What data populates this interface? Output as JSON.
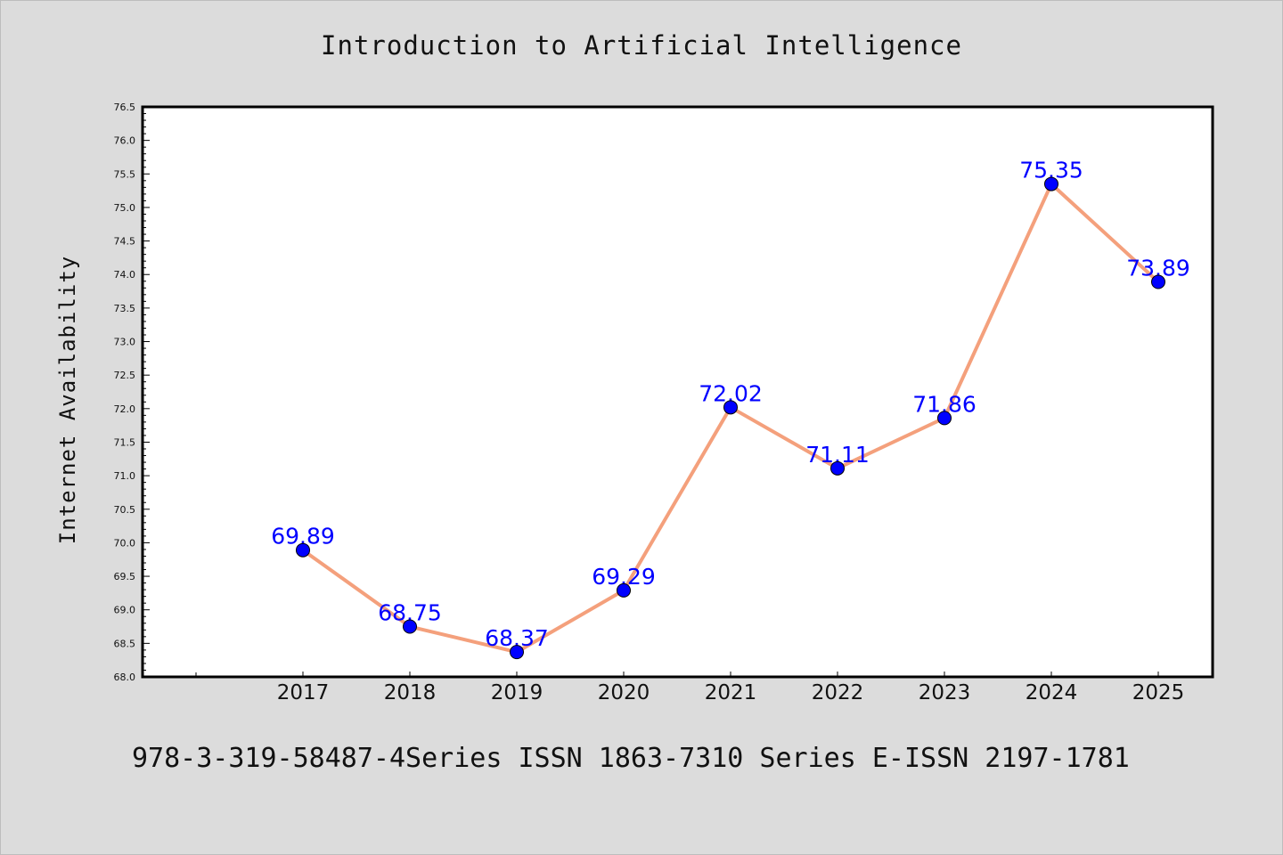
{
  "chart_data": {
    "type": "line",
    "title": "Introduction to Artificial Intelligence",
    "xlabel": "",
    "ylabel": "Internet Availability",
    "footer": "978-3-319-58487-4Series ISSN 1863-7310 Series E-ISSN 2197-1781",
    "categories": [
      "2017",
      "2018",
      "2019",
      "2020",
      "2021",
      "2022",
      "2023",
      "2024",
      "2025"
    ],
    "series": [
      {
        "values": [
          69.89,
          68.75,
          68.37,
          69.29,
          72.02,
          71.11,
          71.86,
          75.35,
          73.89
        ],
        "labels": [
          "69.89",
          "68.75",
          "68.37",
          "69.29",
          "72.02",
          "71.11",
          "71.86",
          "75.35",
          "73.89"
        ]
      }
    ],
    "ylim": [
      68.0,
      76.5
    ],
    "yticks": [
      "68.0",
      "68.5",
      "69.0",
      "69.5",
      "70.0",
      "70.5",
      "71.0",
      "71.5",
      "72.0",
      "72.5",
      "73.0",
      "73.5",
      "74.0",
      "74.5",
      "75.0",
      "75.5",
      "76.0",
      "76.5"
    ],
    "grid": false,
    "colors": {
      "line": "#f4a07c",
      "marker": "#0000ff",
      "label": "#0000ff",
      "background": "#dcdcdc",
      "plot_background": "#ffffff"
    }
  }
}
